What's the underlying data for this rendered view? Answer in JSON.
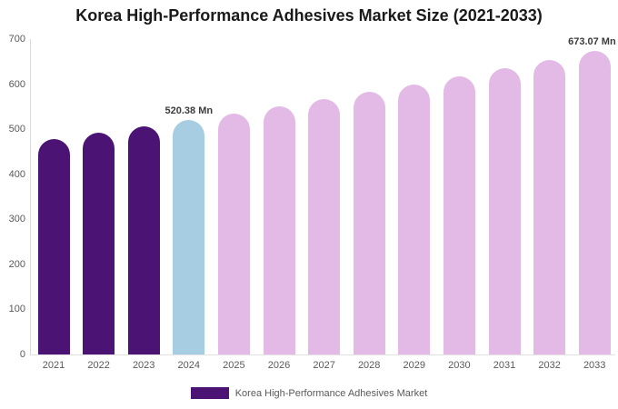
{
  "chart_data": {
    "type": "bar",
    "title": "Korea High-Performance Adhesives Market Size (2021-2033)",
    "unit": "Mn",
    "categories": [
      "2021",
      "2022",
      "2023",
      "2024",
      "2025",
      "2026",
      "2027",
      "2028",
      "2029",
      "2030",
      "2031",
      "2032",
      "2033"
    ],
    "values": [
      477.6,
      491.4,
      505.7,
      520.38,
      535.4,
      550.9,
      566.8,
      583.2,
      600.0,
      617.3,
      635.2,
      653.7,
      673.07
    ],
    "ylim": [
      0,
      700
    ],
    "yticks": [
      0,
      100,
      200,
      300,
      400,
      500,
      600,
      700
    ],
    "grid": false,
    "legend_position": "bottom",
    "data_labels": {
      "2024": "520.38 Mn",
      "2033": "673.07 Mn"
    },
    "bar_colors": [
      "#4A1374",
      "#4A1374",
      "#4A1374",
      "#A6CDE1",
      "#E3BAE6",
      "#E3BAE6",
      "#E3BAE6",
      "#E3BAE6",
      "#E3BAE6",
      "#E3BAE6",
      "#E3BAE6",
      "#E3BAE6",
      "#E3BAE6"
    ],
    "colors": {
      "historical_bar": "#4A1374",
      "current_year_bar": "#A6CDE1",
      "forecast_bar": "#E3BAE6",
      "axis_line": "#D9D9D9",
      "axis_text": "#595959",
      "data_label_text": "#3C3C3C",
      "title_text": "#1A1A1A"
    },
    "legend": [
      {
        "label": "Korea High-Performance Adhesives Market",
        "color": "#4A1374"
      }
    ]
  }
}
